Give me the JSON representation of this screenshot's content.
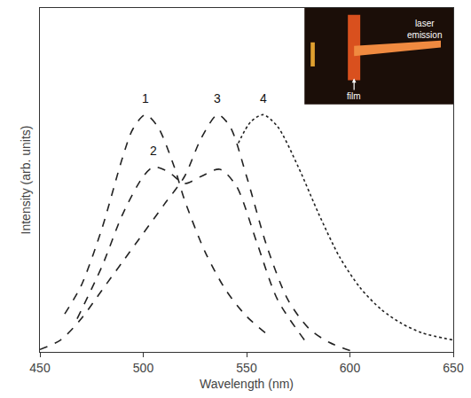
{
  "chart_data": {
    "type": "line",
    "x_label": "Wavelength (nm)",
    "y_label": "Intensity (arb. units)",
    "xlim": [
      450,
      650
    ],
    "xticks": [
      450,
      500,
      550,
      600,
      650
    ],
    "ylim": [
      0,
      1.45
    ],
    "tick_labels": "x",
    "grid": false,
    "series": [
      {
        "name": "1",
        "color": "#222222",
        "line_style": "dash",
        "x": [
          462,
          470,
          480,
          490,
          495,
          501,
          507,
          515,
          520,
          530,
          540,
          550,
          562
        ],
        "values": [
          0.16,
          0.28,
          0.52,
          0.82,
          0.94,
          1.0,
          0.95,
          0.78,
          0.64,
          0.42,
          0.26,
          0.15,
          0.06
        ]
      },
      {
        "name": "2",
        "color": "#222222",
        "line_style": "dash",
        "x": [
          468,
          480,
          490,
          500,
          505,
          512,
          520,
          528,
          537,
          545,
          555,
          565,
          578
        ],
        "values": [
          0.14,
          0.36,
          0.58,
          0.74,
          0.78,
          0.76,
          0.71,
          0.74,
          0.77,
          0.7,
          0.46,
          0.22,
          0.05
        ]
      },
      {
        "name": "3",
        "color": "#222222",
        "line_style": "dash",
        "x": [
          450,
          460,
          470,
          480,
          490,
          500,
          510,
          520,
          528,
          536,
          542,
          550,
          560,
          570,
          580,
          590,
          602
        ],
        "values": [
          0.01,
          0.05,
          0.14,
          0.26,
          0.38,
          0.5,
          0.62,
          0.74,
          0.9,
          1.0,
          0.95,
          0.74,
          0.44,
          0.22,
          0.1,
          0.04,
          0.0
        ]
      },
      {
        "name": "4",
        "color": "#222222",
        "line_style": "dot",
        "x": [
          546,
          552,
          558,
          565,
          575,
          585,
          595,
          605,
          615,
          625,
          635,
          650
        ],
        "values": [
          0.88,
          0.97,
          1.0,
          0.95,
          0.78,
          0.58,
          0.4,
          0.27,
          0.18,
          0.12,
          0.08,
          0.05
        ]
      }
    ],
    "annotations": [
      {
        "text": "1",
        "x": 501,
        "y": 1.07
      },
      {
        "text": "2",
        "x": 505,
        "y": 0.85
      },
      {
        "text": "3",
        "x": 536,
        "y": 1.07
      },
      {
        "text": "4",
        "x": 558,
        "y": 1.07
      }
    ],
    "inset_labels": [
      "laser emission",
      "film"
    ]
  }
}
